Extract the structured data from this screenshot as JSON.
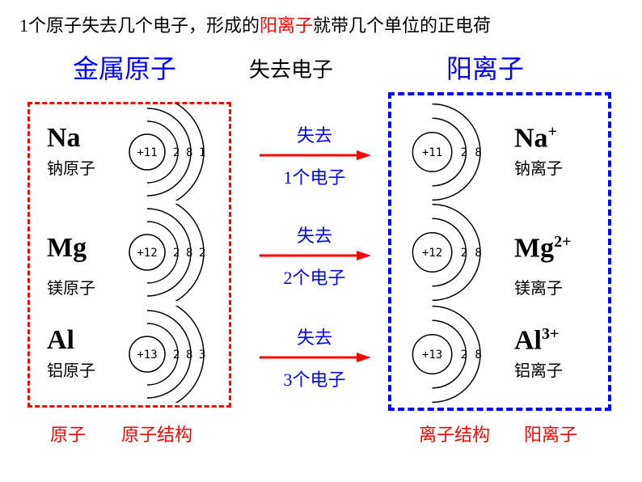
{
  "title": {
    "prefix": "1个原子失去几个电子，形成的",
    "highlight": "阳离子",
    "suffix": "就带几个单位的正电荷"
  },
  "headings": {
    "left": "金属原子",
    "center": "失去电子",
    "right": "阳离子"
  },
  "colors": {
    "red": "#ff0000",
    "blue": "#0000ff",
    "black": "#000000",
    "arrow": "#ff0000"
  },
  "rows": [
    {
      "atom": {
        "symbol": "Na",
        "cn": "钠原子",
        "nucleus": "+11",
        "shells": [
          "2",
          "8",
          "1"
        ]
      },
      "arrow": {
        "top": "失去",
        "bottom": "1个电子"
      },
      "ion": {
        "symbol": "Na",
        "charge": "+",
        "cn": "钠离子",
        "nucleus": "+11",
        "shells": [
          "2",
          "8"
        ]
      }
    },
    {
      "atom": {
        "symbol": "Mg",
        "cn": "镁原子",
        "nucleus": "+12",
        "shells": [
          "2",
          "8",
          "2"
        ]
      },
      "arrow": {
        "top": "失去",
        "bottom": "2个电子"
      },
      "ion": {
        "symbol": "Mg",
        "charge": "2+",
        "cn": "镁离子",
        "nucleus": "+12",
        "shells": [
          "2",
          "8"
        ]
      }
    },
    {
      "atom": {
        "symbol": "Al",
        "cn": "铝原子",
        "nucleus": "+13",
        "shells": [
          "2",
          "8",
          "3"
        ]
      },
      "arrow": {
        "top": "失去",
        "bottom": "3个电子"
      },
      "ion": {
        "symbol": "Al",
        "charge": "3+",
        "cn": "铝离子",
        "nucleus": "+13",
        "shells": [
          "2",
          "8"
        ]
      }
    }
  ],
  "bottom": {
    "left1": "原子",
    "left2": "原子结构",
    "right1": "离子结构",
    "right2": "阳离子"
  },
  "diagram_style": {
    "nucleus_radius": 22,
    "shell_radii": [
      38,
      54,
      70
    ],
    "stroke": "#000000",
    "stroke_width": 1.5,
    "ion_scale": 1.1
  }
}
